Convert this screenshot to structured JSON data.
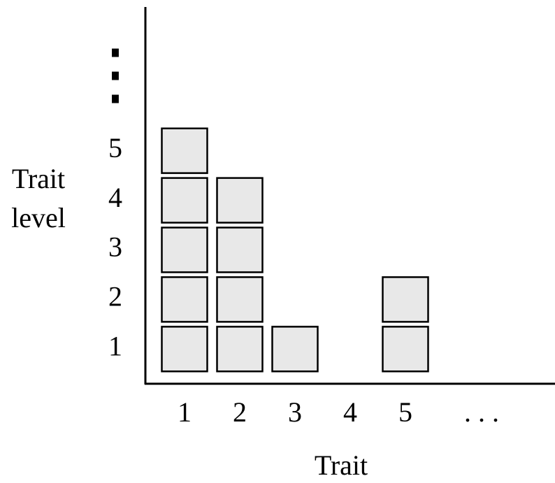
{
  "chart_data": {
    "type": "bar",
    "x_label": "Trait",
    "y_label": "Trait level",
    "categories": [
      "1",
      "2",
      "3",
      "4",
      "5",
      ". . ."
    ],
    "values": [
      5,
      4,
      1,
      0,
      2,
      null
    ],
    "color": "#e8e8e8",
    "ylim": [
      0.3,
      7.9
    ],
    "yticks": [
      1,
      2,
      3,
      4,
      5,
      {
        "value": 6.4,
        "label": "⋮"
      }
    ]
  }
}
